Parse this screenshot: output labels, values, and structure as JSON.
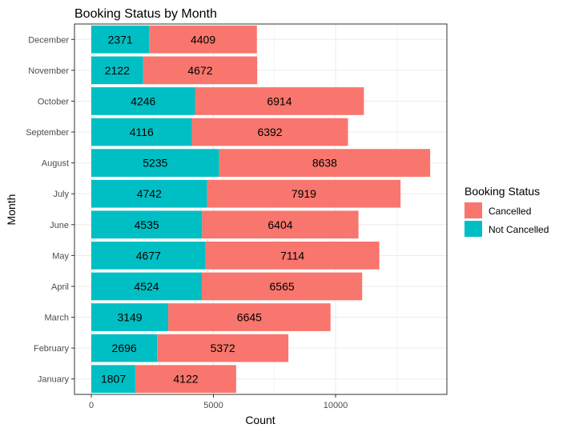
{
  "chart_data": {
    "type": "bar",
    "orientation": "horizontal",
    "stacked": true,
    "title": "Booking Status by Month",
    "xlabel": "Count",
    "ylabel": "Month",
    "xlim": [
      0,
      14500
    ],
    "xticks": [
      0,
      5000,
      10000
    ],
    "grid": true,
    "legend_position": "right",
    "legend_title": "Booking Status",
    "categories": [
      "January",
      "February",
      "March",
      "April",
      "May",
      "June",
      "July",
      "August",
      "September",
      "October",
      "November",
      "December"
    ],
    "series": [
      {
        "name": "Not Cancelled",
        "color": "#00bfc4",
        "values": [
          1807,
          2696,
          3149,
          4524,
          4677,
          4535,
          4742,
          5235,
          4116,
          4246,
          2122,
          2371
        ]
      },
      {
        "name": "Cancelled",
        "color": "#f8766d",
        "values": [
          4122,
          5372,
          6645,
          6565,
          7114,
          6404,
          7919,
          8638,
          6392,
          6914,
          4672,
          4409
        ]
      }
    ],
    "legend_order": [
      "Cancelled",
      "Not Cancelled"
    ]
  }
}
